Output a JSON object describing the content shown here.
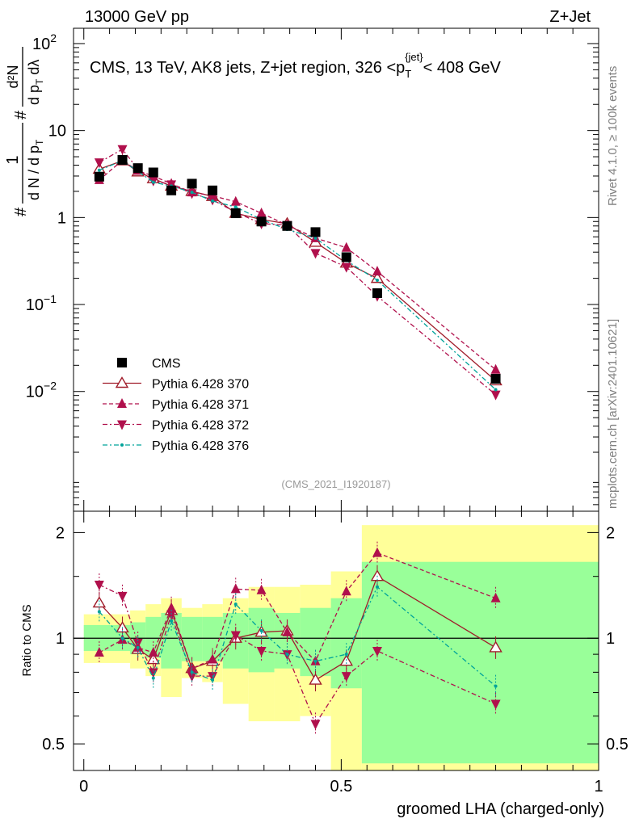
{
  "header": {
    "left": "13000 GeV pp",
    "right": "Z+Jet"
  },
  "side_labels": {
    "rivet": "Rivet 4.1.0, ≥ 100k events",
    "mcplots": "mcplots.cern.ch [arXiv:2401.10621]"
  },
  "chart_data": [
    {
      "type": "line",
      "panel": "main",
      "title": "CMS, 13 TeV, AK8 jets, Z+jet region, 326 <p_T^{jet}< 408 GeV",
      "title_parts": {
        "pre": "CMS, 13 TeV, AK8 jets, Z+jet region, 326 <p",
        "sub": "T",
        "sup": "{jet}",
        "post": "< 408 GeV"
      },
      "ylabel": "1/dN/dp_T  d²N/dp_T dλ",
      "ylabel_parts": {
        "inv_num": "1",
        "inv_den": "d N / d p",
        "inv_den_sub": "T",
        "num": "d²N",
        "den": "d p",
        "den_sub": "T",
        "den_post": " dλ",
        "hash": "#"
      },
      "ylim": [
        0.00042,
        150
      ],
      "yscale": "log",
      "xlim": [
        -0.02,
        1.0
      ],
      "watermark": "(CMS_2021_I1920187)",
      "x": [
        0.03,
        0.075,
        0.105,
        0.135,
        0.17,
        0.21,
        0.25,
        0.295,
        0.345,
        0.395,
        0.45,
        0.51,
        0.57,
        0.8
      ],
      "series": [
        {
          "name": "CMS",
          "marker": "square",
          "color": "#000000",
          "values": [
            2.95,
            4.6,
            3.7,
            3.3,
            2.05,
            2.45,
            2.05,
            1.12,
            0.9,
            0.8,
            0.68,
            0.35,
            0.135,
            0.014
          ]
        },
        {
          "name": "Pythia 6.428 370",
          "marker": "open-triangle-up",
          "color": "#a01c2a",
          "dash": "",
          "values": [
            3.6,
            4.5,
            3.35,
            2.8,
            2.3,
            2.0,
            1.75,
            1.12,
            0.95,
            0.85,
            0.52,
            0.3,
            0.2,
            0.0133
          ]
        },
        {
          "name": "Pythia 6.428 371",
          "marker": "triangle-up",
          "color": "#b0104c",
          "dash": "5,3",
          "values": [
            2.7,
            4.55,
            3.45,
            3.0,
            2.45,
            1.95,
            1.78,
            1.52,
            1.12,
            0.82,
            0.58,
            0.45,
            0.24,
            0.0178
          ]
        },
        {
          "name": "Pythia 6.428 372",
          "marker": "triangle-down",
          "color": "#b0104c",
          "dash": "6,3,2,3",
          "values": [
            4.3,
            6.1,
            3.6,
            2.65,
            2.4,
            1.9,
            1.6,
            1.15,
            0.85,
            0.82,
            0.39,
            0.27,
            0.125,
            0.0092
          ]
        },
        {
          "name": "Pythia 6.428 376",
          "marker": "dot",
          "color": "#00a39a",
          "dash": "6,3,2,3",
          "values": [
            3.5,
            4.5,
            3.4,
            2.55,
            2.3,
            1.95,
            1.55,
            1.32,
            0.95,
            0.73,
            0.58,
            0.32,
            0.19,
            0.0105
          ]
        }
      ]
    },
    {
      "type": "line",
      "panel": "ratio",
      "ylabel": "Ratio to CMS",
      "xlabel": "groomed LHA (charged-only)",
      "ylim": [
        0.42,
        2.3
      ],
      "yscale": "log",
      "xlim": [
        -0.02,
        1.0
      ],
      "x_ticks": [
        "0",
        "0.5",
        "1"
      ],
      "y_ticks": [
        "0.5",
        "1",
        "2"
      ],
      "bands": [
        {
          "x0": 0.0,
          "x1": 0.06,
          "green": [
            0.92,
            1.09
          ],
          "yellow": [
            0.85,
            1.17
          ]
        },
        {
          "x0": 0.06,
          "x1": 0.09,
          "green": [
            0.92,
            1.09
          ],
          "yellow": [
            0.85,
            1.17
          ]
        },
        {
          "x0": 0.09,
          "x1": 0.12,
          "green": [
            0.9,
            1.11
          ],
          "yellow": [
            0.82,
            1.2
          ]
        },
        {
          "x0": 0.12,
          "x1": 0.15,
          "green": [
            0.88,
            1.15
          ],
          "yellow": [
            0.78,
            1.25
          ]
        },
        {
          "x0": 0.15,
          "x1": 0.19,
          "green": [
            0.82,
            1.18
          ],
          "yellow": [
            0.68,
            1.3
          ]
        },
        {
          "x0": 0.19,
          "x1": 0.23,
          "green": [
            0.86,
            1.15
          ],
          "yellow": [
            0.77,
            1.22
          ]
        },
        {
          "x0": 0.23,
          "x1": 0.27,
          "green": [
            0.86,
            1.15
          ],
          "yellow": [
            0.75,
            1.25
          ]
        },
        {
          "x0": 0.27,
          "x1": 0.32,
          "green": [
            0.82,
            1.18
          ],
          "yellow": [
            0.65,
            1.3
          ]
        },
        {
          "x0": 0.32,
          "x1": 0.37,
          "green": [
            0.8,
            1.22
          ],
          "yellow": [
            0.58,
            1.4
          ]
        },
        {
          "x0": 0.37,
          "x1": 0.42,
          "green": [
            0.82,
            1.18
          ],
          "yellow": [
            0.58,
            1.4
          ]
        },
        {
          "x0": 0.42,
          "x1": 0.48,
          "green": [
            0.78,
            1.22
          ],
          "yellow": [
            0.6,
            1.42
          ]
        },
        {
          "x0": 0.48,
          "x1": 0.54,
          "green": [
            0.72,
            1.3
          ],
          "yellow": [
            0.42,
            1.55
          ]
        },
        {
          "x0": 0.54,
          "x1": 1.0,
          "green": [
            0.44,
            1.65
          ],
          "yellow": [
            0.42,
            2.1
          ]
        }
      ],
      "x": [
        0.03,
        0.075,
        0.105,
        0.135,
        0.17,
        0.21,
        0.25,
        0.295,
        0.345,
        0.395,
        0.45,
        0.51,
        0.57,
        0.8
      ],
      "series": [
        {
          "name": "Pythia 6.428 370",
          "values": [
            1.26,
            1.07,
            0.93,
            0.87,
            1.2,
            0.82,
            0.86,
            1.0,
            1.04,
            1.05,
            0.76,
            0.86,
            1.5,
            0.94
          ]
        },
        {
          "name": "Pythia 6.428 371",
          "values": [
            0.91,
            0.99,
            0.94,
            0.91,
            1.22,
            0.82,
            0.87,
            1.38,
            1.37,
            1.04,
            0.86,
            1.36,
            1.75,
            1.3
          ]
        },
        {
          "name": "Pythia 6.428 372",
          "values": [
            1.42,
            1.32,
            0.97,
            0.8,
            1.17,
            0.78,
            0.78,
            1.02,
            0.92,
            0.9,
            0.57,
            0.78,
            0.92,
            0.65
          ]
        },
        {
          "name": "Pythia 6.428 376",
          "values": [
            1.19,
            1.0,
            0.94,
            0.77,
            1.12,
            0.8,
            0.76,
            1.25,
            1.05,
            0.9,
            0.86,
            0.9,
            1.4,
            0.73
          ]
        }
      ]
    }
  ]
}
